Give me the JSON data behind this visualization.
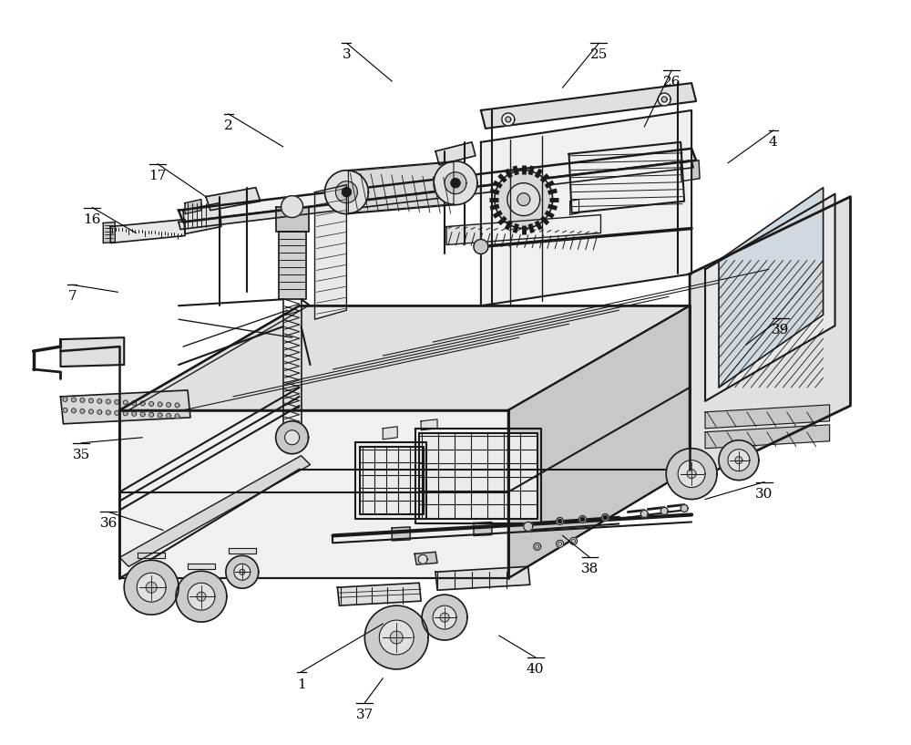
{
  "bg_color": "#ffffff",
  "line_color": "#1a1a1a",
  "light_fill": "#f0f0f0",
  "mid_fill": "#e0e0e0",
  "dark_fill": "#c8c8c8",
  "labels": [
    [
      "1",
      330,
      745,
      330,
      738,
      420,
      685
    ],
    [
      "2",
      250,
      130,
      250,
      124,
      310,
      160
    ],
    [
      "3",
      380,
      52,
      380,
      46,
      430,
      88
    ],
    [
      "4",
      850,
      148,
      850,
      142,
      800,
      178
    ],
    [
      "7",
      78,
      318,
      78,
      312,
      128,
      320
    ],
    [
      "16",
      100,
      233,
      100,
      227,
      148,
      255
    ],
    [
      "17",
      172,
      185,
      172,
      179,
      225,
      215
    ],
    [
      "25",
      658,
      52,
      658,
      46,
      618,
      95
    ],
    [
      "26",
      738,
      82,
      738,
      76,
      708,
      138
    ],
    [
      "30",
      840,
      535,
      840,
      529,
      775,
      548
    ],
    [
      "35",
      88,
      492,
      88,
      486,
      155,
      480
    ],
    [
      "36",
      118,
      568,
      118,
      562,
      178,
      582
    ],
    [
      "37",
      400,
      778,
      400,
      772,
      420,
      745
    ],
    [
      "38",
      648,
      618,
      648,
      612,
      618,
      588
    ],
    [
      "39",
      858,
      355,
      858,
      349,
      820,
      378
    ],
    [
      "40",
      588,
      728,
      588,
      722,
      548,
      698
    ]
  ]
}
